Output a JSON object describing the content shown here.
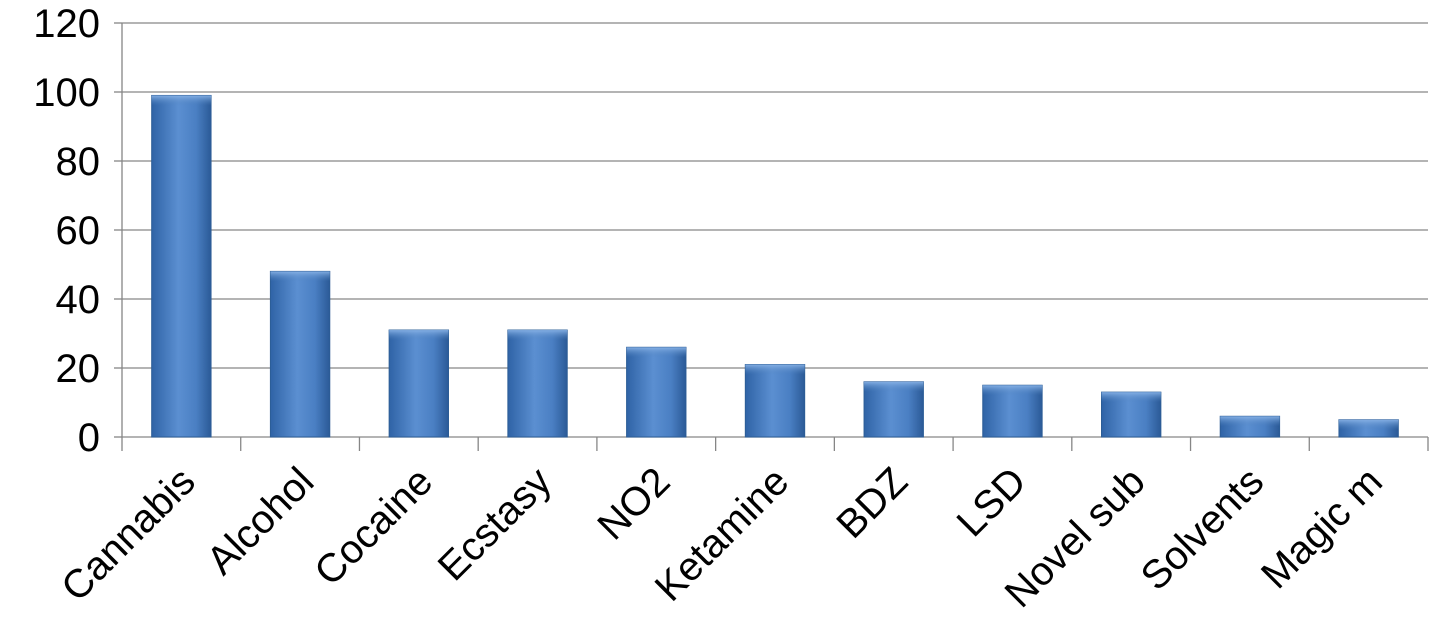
{
  "chart_data": {
    "type": "bar",
    "title": "",
    "xlabel": "",
    "ylabel": "",
    "categories": [
      "Cannabis",
      "Alcohol",
      "Cocaine",
      "Ecstasy",
      "NO2",
      "Ketamine",
      "BDZ",
      "LSD",
      "Novel sub",
      "Solvents",
      "Magic m"
    ],
    "series": [
      {
        "values": [
          99,
          48,
          31,
          31,
          26,
          21,
          16,
          15,
          13,
          6,
          5
        ],
        "color": "#4f81bd"
      }
    ],
    "ylim": [
      0,
      120
    ],
    "yticks": [
      0,
      20,
      40,
      60,
      80,
      100,
      120
    ],
    "grid": true,
    "legend": "none"
  }
}
